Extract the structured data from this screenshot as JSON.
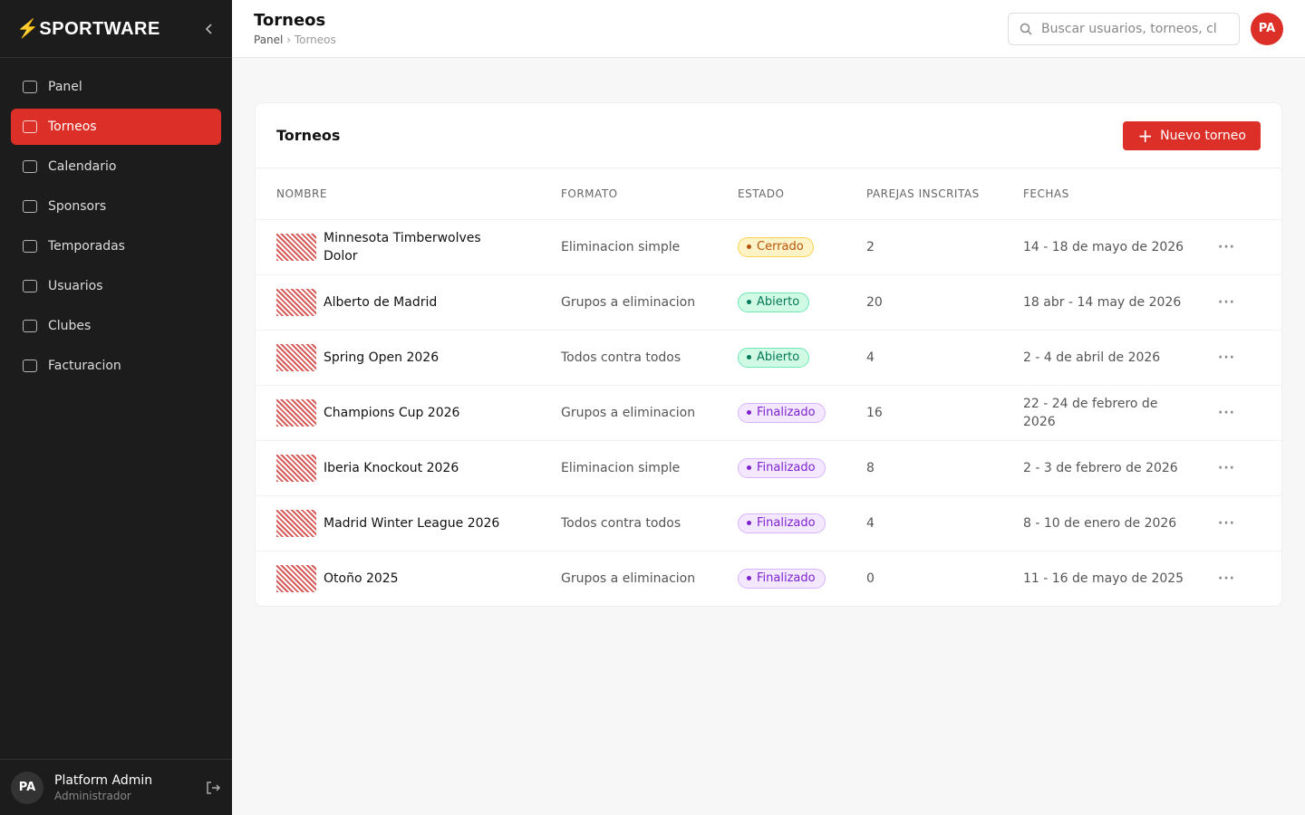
{
  "sidebar": {
    "brand": "SPORTWARE",
    "nav": [
      "Panel",
      "Torneos",
      "Calendario",
      "Sponsors",
      "Temporadas",
      "Usuarios",
      "Clubes",
      "Facturacion"
    ],
    "active": 1,
    "user": {
      "initials": "PA",
      "name": "Platform Admin",
      "role": "Administrador"
    }
  },
  "header": {
    "title": "Torneos",
    "breadcrumb": [
      "Panel",
      "Torneos"
    ],
    "search": "Buscar usuarios, torneos, cl",
    "avatar": "PA"
  },
  "card": {
    "title": "Torneos",
    "button": "Nuevo torneo",
    "columns": [
      "NOMBRE",
      "FORMATO",
      "ESTADO",
      "PAREJAS INSCRITAS",
      "FECHAS"
    ],
    "rows": [
      {
        "name": "Minnesota Timberwolves Dolor",
        "format": "Eliminacion simple",
        "status": "Cerrado",
        "tone": "amber",
        "pairs": "2",
        "dates": "14 - 18 de mayo de 2026"
      },
      {
        "name": "Alberto de Madrid",
        "format": "Grupos a eliminacion",
        "status": "Abierto",
        "tone": "green",
        "pairs": "20",
        "dates": "18 abr - 14 may de 2026"
      },
      {
        "name": "Spring Open 2026",
        "format": "Todos contra todos",
        "status": "Abierto",
        "tone": "green",
        "pairs": "4",
        "dates": "2 - 4 de abril de 2026"
      },
      {
        "name": "Champions Cup 2026",
        "format": "Grupos a eliminacion",
        "status": "Finalizado",
        "tone": "purple",
        "pairs": "16",
        "dates": "22 - 24 de febrero de 2026"
      },
      {
        "name": "Iberia Knockout 2026",
        "format": "Eliminacion simple",
        "status": "Finalizado",
        "tone": "purple",
        "pairs": "8",
        "dates": "2 - 3 de febrero de 2026"
      },
      {
        "name": "Madrid Winter League 2026",
        "format": "Todos contra todos",
        "status": "Finalizado",
        "tone": "purple",
        "pairs": "4",
        "dates": "8 - 10 de enero de 2026"
      },
      {
        "name": "Otoño 2025",
        "format": "Grupos a eliminacion",
        "status": "Finalizado",
        "tone": "purple",
        "pairs": "0",
        "dates": "11 - 16 de mayo de 2025"
      }
    ]
  }
}
